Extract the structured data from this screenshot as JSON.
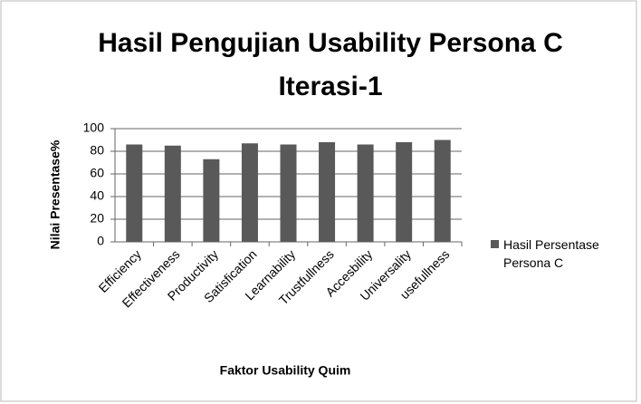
{
  "chart_data": {
    "type": "bar",
    "title": "Hasil Pengujian Usability Persona C Iterasi-1",
    "x_label": "Faktor Usability Quim",
    "y_label": "Nilai Presentase%",
    "categories": [
      "Efficiency",
      "Effectiveness",
      "Productivity",
      "Satisfication",
      "Learnability",
      "Trustfullness",
      "Accesbility",
      "Universality",
      "usefullness"
    ],
    "series": [
      {
        "name": "Hasil Persentase Persona C",
        "color": "#595959",
        "values": [
          86,
          85,
          73,
          87,
          86,
          88,
          86,
          88,
          90
        ]
      }
    ],
    "ylim": [
      0,
      100
    ],
    "yticks": [
      0,
      20,
      40,
      60,
      80,
      100
    ],
    "grid": true,
    "legend": "right"
  }
}
